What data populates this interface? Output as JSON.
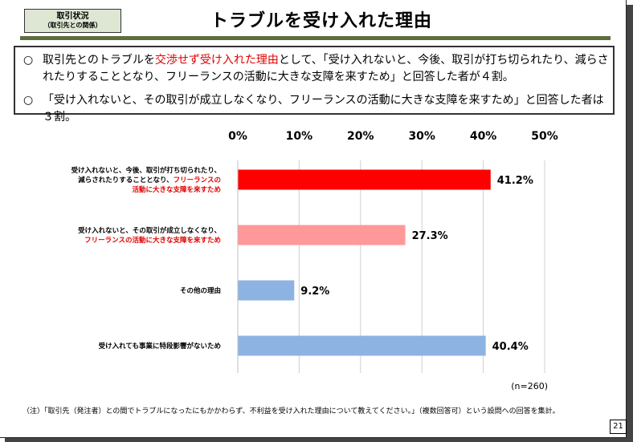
{
  "header": {
    "tag_line1": "取引状況",
    "tag_line2": "（取引先との関係）",
    "title": "トラブルを受け入れた理由"
  },
  "summary": {
    "bullet_mark": "○",
    "bullet1_a": "取引先とのトラブルを",
    "bullet1_red": "交渉せず受け入れた理由",
    "bullet1_b": "として、「受け入れないと、今後、取引が打ち切られたり、減らされたりすることとなり、フリーランスの活動に大きな支障を来すため」と回答した者が４割。",
    "bullet2": "「受け入れないと、その取引が成立しなくなり、フリーランスの活動に大きな支障を来すため」と回答した者は３割。"
  },
  "chart_data": {
    "type": "bar",
    "orientation": "horizontal",
    "categories": [
      [
        "受け入れないと、今後、取引が打ち切られたり、",
        "減らされたりすることとなり、フリーランスの",
        "活動に大きな支障を来すため"
      ],
      [
        "受け入れないと、その取引が成立しなくなり、",
        "フリーランスの活動に大きな支障を来すため"
      ],
      [
        "その他の理由"
      ],
      [
        "受け入れても事業に特段影響がないため"
      ]
    ],
    "category_red_parts": [
      {
        "line": 1,
        "black": "減らされたりすることとなり、",
        "red": "フリーランスの"
      },
      {
        "line": 1,
        "black": "",
        "red": "フリーランスの活動に大きな支障を来すため"
      }
    ],
    "values": [
      41.2,
      27.3,
      9.2,
      40.4
    ],
    "value_labels": [
      "41.2%",
      "27.3%",
      "9.2%",
      "40.4%"
    ],
    "bar_colors": [
      "#ff0000",
      "#ff9999",
      "#8db3e2",
      "#8db3e2"
    ],
    "xlim": [
      0,
      50
    ],
    "ticks": [
      "0%",
      "10%",
      "20%",
      "30%",
      "40%",
      "50%"
    ],
    "tick_values": [
      0,
      10,
      20,
      30,
      40,
      50
    ],
    "grid": true,
    "n_label": "(n=260)"
  },
  "footer": {
    "note": "（注）「取引先（発注者）との間でトラブルになったにもかかわらず、不利益を受け入れた理由について教えてください。」（複数回答可）という設問への回答を集計。",
    "page_number": "21"
  }
}
